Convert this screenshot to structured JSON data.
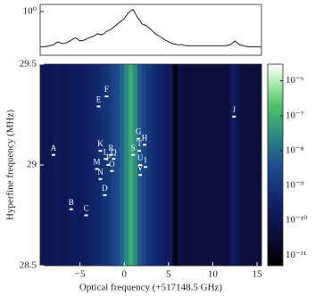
{
  "chart_data": [
    {
      "type": "line",
      "color": "#222222",
      "log_y": true,
      "xlim": [
        -9.5,
        15.5
      ],
      "ylim": [
        0.12,
        1.4
      ],
      "yticks": [
        {
          "value": 1,
          "label": "10⁰"
        }
      ],
      "x": [
        -9.5,
        -9,
        -8.5,
        -8,
        -7.5,
        -7,
        -6.5,
        -6,
        -5.5,
        -5,
        -4.5,
        -4,
        -3.5,
        -3,
        -2.5,
        -2,
        -1.5,
        -1,
        -0.5,
        0,
        0.5,
        1,
        1.5,
        2,
        2.5,
        3,
        3.5,
        4,
        4.5,
        5,
        5.5,
        6,
        6.5,
        7,
        7.5,
        8,
        8.5,
        9,
        9.5,
        10,
        10.5,
        11,
        11.5,
        12,
        12.5,
        13,
        13.5,
        14,
        14.5,
        15,
        15.5
      ],
      "values": [
        0.18,
        0.18,
        0.19,
        0.2,
        0.23,
        0.21,
        0.22,
        0.25,
        0.28,
        0.24,
        0.25,
        0.28,
        0.3,
        0.34,
        0.32,
        0.38,
        0.42,
        0.5,
        0.6,
        0.7,
        0.95,
        1.1,
        0.75,
        0.55,
        0.5,
        0.42,
        0.34,
        0.3,
        0.26,
        0.23,
        0.21,
        0.2,
        0.2,
        0.19,
        0.19,
        0.19,
        0.19,
        0.19,
        0.19,
        0.19,
        0.19,
        0.19,
        0.19,
        0.2,
        0.24,
        0.2,
        0.19,
        0.18,
        0.18,
        0.18,
        0.18
      ]
    },
    {
      "type": "heatmap",
      "xlabel": "Optical frequency (+517148.5 GHz)",
      "ylabel": "Hyperfine frequency (MHz)",
      "xlim": [
        -9.5,
        15.5
      ],
      "xticks": [
        {
          "value": -5,
          "label": "−5"
        },
        0,
        5,
        10,
        15
      ],
      "ylim": [
        28.5,
        29.5
      ],
      "yticks": [
        28.5,
        29,
        29.5
      ],
      "x_bins": [
        -9.5,
        -9,
        -8.5,
        -8,
        -7.5,
        -7,
        -6.5,
        -6,
        -5.5,
        -5,
        -4.5,
        -4,
        -3.5,
        -3,
        -2.5,
        -2,
        -1.5,
        -1,
        -0.5,
        0,
        0.5,
        1,
        1.5,
        2,
        2.5,
        3,
        3.5,
        4,
        4.5,
        5,
        5.5,
        6,
        6.5,
        7,
        7.5,
        8,
        8.5,
        9,
        9.5,
        10,
        10.5,
        11,
        11.5,
        12,
        12.5,
        13,
        13.5,
        14,
        14.5,
        15,
        15.5
      ],
      "z": [
        1e-10,
        1.2e-10,
        1e-10,
        1.5e-10,
        1.2e-10,
        1e-10,
        1.5e-10,
        2e-10,
        1.5e-10,
        2e-10,
        2.5e-10,
        3e-10,
        4e-10,
        6e-10,
        8e-10,
        1e-09,
        2e-09,
        3e-09,
        8e-09,
        3e-08,
        8e-08,
        3e-08,
        5e-09,
        2e-09,
        1e-09,
        6e-10,
        4e-10,
        3e-10,
        2e-10,
        1.5e-10,
        1e-11,
        5e-11,
        4e-11,
        4e-11,
        4e-11,
        4e-11,
        4e-11,
        4e-11,
        4e-11,
        4e-11,
        4e-11,
        4e-11,
        5e-11,
        2e-10,
        1e-10,
        5e-11,
        4e-11,
        4e-11,
        4e-11,
        4e-11
      ],
      "colorbar": {
        "log": true,
        "lim": [
          5e-12,
          3e-06
        ],
        "ticks": [
          {
            "value": 1e-11,
            "label": "10⁻¹¹"
          },
          {
            "value": 1e-10,
            "label": "10⁻¹⁰"
          },
          {
            "value": 1e-09,
            "label": "10⁻⁹"
          },
          {
            "value": 1e-08,
            "label": "10⁻⁸"
          },
          {
            "value": 1e-07,
            "label": "10⁻⁷"
          },
          {
            "value": 1e-06,
            "label": "10⁻⁶"
          }
        ]
      },
      "point_color": "#ffffff",
      "points": {
        "labels": [
          "A",
          "B",
          "C",
          "D",
          "E",
          "F",
          "G",
          "H",
          "I",
          "J",
          "K",
          "L",
          "M",
          "N",
          "O",
          "P",
          "Q",
          "R",
          "S",
          "T",
          "U",
          "V"
        ],
        "x": [
          -8.0,
          -6.0,
          -4.3,
          -2.2,
          -2.9,
          -2.0,
          1.6,
          2.3,
          2.4,
          12.4,
          -2.7,
          -2.1,
          -3.1,
          -2.7,
          -1.4,
          -1.8,
          -1.2,
          -1.5,
          1.0,
          1.7,
          1.8,
          1.8
        ],
        "y": [
          29.05,
          28.78,
          28.75,
          28.85,
          29.29,
          29.34,
          29.13,
          29.1,
          28.99,
          29.24,
          29.07,
          29.03,
          28.98,
          28.93,
          28.97,
          29.0,
          29.03,
          29.05,
          29.05,
          29.07,
          29.0,
          28.95
        ]
      }
    }
  ]
}
